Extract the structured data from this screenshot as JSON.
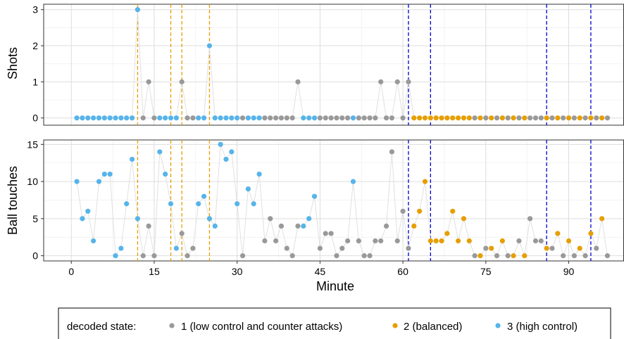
{
  "chart_data": {
    "type": "scatter",
    "xlabel": "Minute",
    "x_ticks": [
      0,
      15,
      30,
      45,
      60,
      75,
      90
    ],
    "xlim": [
      -5,
      100
    ],
    "grid": true,
    "legend_position": "bottom",
    "legend": {
      "title": "decoded state:",
      "entries": [
        {
          "state": 1,
          "label": "1 (low control and counter attacks)",
          "color": "#999999"
        },
        {
          "state": 2,
          "label": "2 (balanced)",
          "color": "#E69F00"
        },
        {
          "state": 3,
          "label": "3 (high control)",
          "color": "#56B4E9"
        }
      ]
    },
    "vlines_orange": [
      12,
      18,
      20,
      25
    ],
    "vlines_blue": [
      61,
      65,
      86,
      94
    ],
    "colors": {
      "line": "#e0e0e0",
      "vline_orange": "#E69F00",
      "vline_blue": "#0000CC",
      "grid": "#dddddd"
    },
    "minutes": [
      1,
      2,
      3,
      4,
      5,
      6,
      7,
      8,
      9,
      10,
      11,
      12,
      13,
      14,
      15,
      16,
      17,
      18,
      19,
      20,
      21,
      22,
      23,
      24,
      25,
      26,
      27,
      28,
      29,
      30,
      31,
      32,
      33,
      34,
      35,
      36,
      37,
      38,
      39,
      40,
      41,
      42,
      43,
      44,
      45,
      46,
      47,
      48,
      49,
      50,
      51,
      52,
      53,
      54,
      55,
      56,
      57,
      58,
      59,
      60,
      61,
      62,
      63,
      64,
      65,
      66,
      67,
      68,
      69,
      70,
      71,
      72,
      73,
      74,
      75,
      76,
      77,
      78,
      79,
      80,
      81,
      82,
      83,
      84,
      85,
      86,
      87,
      88,
      89,
      90,
      91,
      92,
      93,
      94,
      95,
      96,
      97
    ],
    "states": [
      3,
      3,
      3,
      3,
      3,
      3,
      3,
      3,
      3,
      3,
      3,
      3,
      1,
      1,
      1,
      3,
      3,
      3,
      3,
      1,
      1,
      1,
      3,
      3,
      3,
      3,
      3,
      3,
      3,
      3,
      1,
      3,
      3,
      3,
      1,
      1,
      1,
      1,
      1,
      1,
      1,
      3,
      3,
      3,
      1,
      1,
      1,
      1,
      1,
      1,
      3,
      1,
      1,
      1,
      1,
      1,
      1,
      1,
      1,
      1,
      1,
      2,
      2,
      2,
      2,
      2,
      2,
      2,
      2,
      2,
      2,
      2,
      1,
      2,
      1,
      2,
      1,
      2,
      1,
      2,
      1,
      2,
      1,
      1,
      1,
      2,
      1,
      2,
      1,
      2,
      1,
      2,
      1,
      2,
      1,
      2,
      1
    ],
    "panels": [
      {
        "ylabel": "Shots",
        "ylim": [
          -0.2,
          3.15
        ],
        "y_ticks": [
          0,
          1,
          2,
          3
        ],
        "values": [
          0,
          0,
          0,
          0,
          0,
          0,
          0,
          0,
          0,
          0,
          0,
          3,
          0,
          1,
          0,
          0,
          0,
          0,
          0,
          1,
          0,
          0,
          0,
          0,
          2,
          0,
          0,
          0,
          0,
          0,
          0,
          0,
          0,
          0,
          0,
          0,
          0,
          0,
          0,
          0,
          1,
          0,
          0,
          0,
          0,
          0,
          0,
          0,
          0,
          0,
          0,
          0,
          0,
          0,
          0,
          1,
          0,
          0,
          1,
          0,
          1,
          0,
          0,
          0,
          0,
          0,
          0,
          0,
          0,
          0,
          0,
          0,
          0,
          0,
          0,
          0,
          0,
          0,
          0,
          0,
          0,
          0,
          0,
          0,
          0,
          0,
          0,
          0,
          0,
          0,
          0,
          0,
          0,
          0,
          0,
          0,
          0
        ]
      },
      {
        "ylabel": "Ball touches",
        "ylim": [
          -0.7,
          15.6
        ],
        "y_ticks": [
          0,
          5,
          10,
          15
        ],
        "values": [
          10,
          5,
          6,
          2,
          10,
          11,
          11,
          0,
          1,
          7,
          13,
          5,
          0,
          4,
          0,
          14,
          11,
          7,
          1,
          3,
          0,
          1,
          7,
          8,
          5,
          4,
          15,
          13,
          14,
          7,
          0,
          9,
          7,
          11,
          2,
          5,
          2,
          4,
          1,
          0,
          4,
          4,
          5,
          8,
          1,
          3,
          3,
          0,
          1,
          2,
          10,
          2,
          0,
          0,
          2,
          2,
          4,
          14,
          2,
          6,
          1,
          4,
          6,
          10,
          2,
          2,
          2,
          3,
          6,
          2,
          5,
          2,
          0,
          0,
          1,
          1,
          0,
          2,
          0,
          0,
          2,
          0,
          5,
          2,
          2,
          1,
          1,
          3,
          0,
          2,
          0,
          1,
          0,
          3,
          1,
          5,
          0
        ]
      }
    ]
  }
}
